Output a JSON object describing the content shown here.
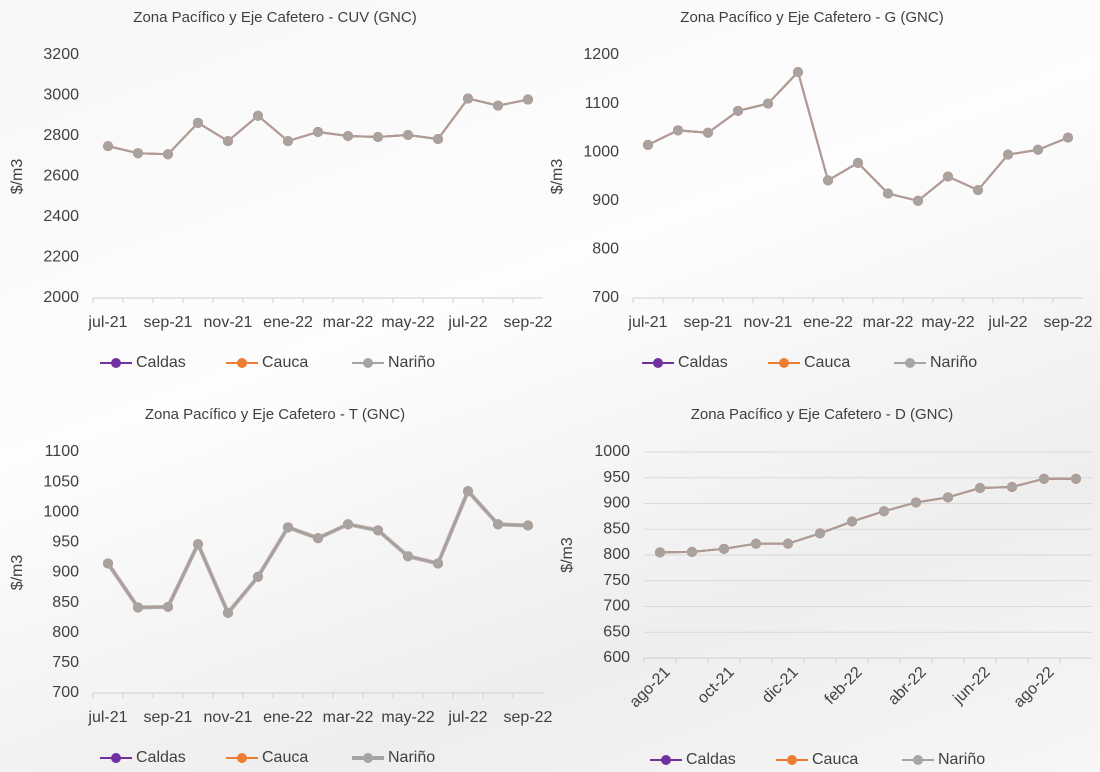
{
  "chart_data": [
    {
      "type": "line",
      "title": "Zona Pacífico y Eje Cafetero  - CUV (GNC)",
      "y_label": "$/m3",
      "categories": [
        "jul-21",
        null,
        "sep-21",
        null,
        "nov-21",
        null,
        "ene-22",
        null,
        "mar-22",
        null,
        "may-22",
        null,
        "jul-22",
        null,
        "sep-22"
      ],
      "series": [
        {
          "name": "Caldas",
          "color": "#7030a0",
          "values": [
            2750,
            2715,
            2710,
            2865,
            2775,
            2900,
            2775,
            2820,
            2800,
            2795,
            2805,
            2785,
            2985,
            2950,
            2980
          ]
        },
        {
          "name": "Cauca",
          "color": "#ed7d31",
          "values": [
            2750,
            2715,
            2710,
            2865,
            2775,
            2900,
            2775,
            2820,
            2800,
            2795,
            2805,
            2785,
            2985,
            2950,
            2980
          ]
        },
        {
          "name": "Nariño",
          "color": "#a5a5a5",
          "values": [
            2750,
            2715,
            2710,
            2865,
            2775,
            2900,
            2775,
            2820,
            2800,
            2795,
            2805,
            2785,
            2985,
            2950,
            2980
          ]
        }
      ],
      "ylim": [
        2000,
        3200
      ],
      "yticks": [
        2000,
        2200,
        2400,
        2600,
        2800,
        3000,
        3200
      ],
      "grid": false,
      "legend": "bottom"
    },
    {
      "type": "line",
      "title": "Zona Pacífico y Eje Cafetero  - G (GNC)",
      "y_label": "$/m3",
      "categories": [
        "jul-21",
        null,
        "sep-21",
        null,
        "nov-21",
        null,
        "ene-22",
        null,
        "mar-22",
        null,
        "may-22",
        null,
        "jul-22",
        null,
        "sep-22"
      ],
      "series": [
        {
          "name": "Caldas",
          "color": "#7030a0",
          "values": [
            1015,
            1045,
            1040,
            1085,
            1100,
            1165,
            942,
            978,
            915,
            900,
            950,
            922,
            995,
            1005,
            1030
          ]
        },
        {
          "name": "Cauca",
          "color": "#ed7d31",
          "values": [
            1015,
            1045,
            1040,
            1085,
            1100,
            1165,
            942,
            978,
            915,
            900,
            950,
            922,
            995,
            1005,
            1030
          ]
        },
        {
          "name": "Nariño",
          "color": "#a5a5a5",
          "values": [
            1015,
            1045,
            1040,
            1085,
            1100,
            1165,
            942,
            978,
            915,
            900,
            950,
            922,
            995,
            1005,
            1030
          ]
        }
      ],
      "ylim": [
        700,
        1200
      ],
      "yticks": [
        700,
        800,
        900,
        1000,
        1100,
        1200
      ],
      "grid": false,
      "legend": "bottom"
    },
    {
      "type": "line",
      "title": "Zona Pacífico y Eje Cafetero  - T (GNC)",
      "y_label": "$/m3",
      "categories": [
        "jul-21",
        null,
        "sep-21",
        null,
        "nov-21",
        null,
        "ene-22",
        null,
        "mar-22",
        null,
        "may-22",
        null,
        "jul-22",
        null,
        "sep-22"
      ],
      "series": [
        {
          "name": "Caldas",
          "color": "#7030a0",
          "values": [
            915,
            842,
            843,
            947,
            833,
            893,
            975,
            957,
            980,
            970,
            927,
            915,
            1035,
            980,
            978
          ]
        },
        {
          "name": "Cauca",
          "color": "#ed7d31",
          "values": [
            915,
            842,
            843,
            947,
            833,
            893,
            975,
            957,
            980,
            970,
            927,
            915,
            1035,
            980,
            978
          ]
        },
        {
          "name": "Nariño",
          "color": "#a5a5a5",
          "values": [
            915,
            842,
            843,
            947,
            833,
            893,
            975,
            957,
            980,
            970,
            927,
            915,
            1035,
            980,
            978
          ]
        }
      ],
      "ylim": [
        700,
        1100
      ],
      "yticks": [
        700,
        750,
        800,
        850,
        900,
        950,
        1000,
        1050,
        1100
      ],
      "grid": false,
      "legend": "bottom"
    },
    {
      "type": "line",
      "title": "Zona Pacífico y Eje Cafetero  - D (GNC)",
      "y_label": "$/m3",
      "categories": [
        "ago-21",
        null,
        "oct-21",
        null,
        "dic-21",
        null,
        "feb-22",
        null,
        "abr-22",
        null,
        "jun-22",
        null,
        "ago-22",
        null
      ],
      "series": [
        {
          "name": "Caldas",
          "color": "#7030a0",
          "values": [
            805,
            806,
            812,
            822,
            822,
            842,
            865,
            885,
            902,
            912,
            930,
            932,
            948,
            948
          ]
        },
        {
          "name": "Cauca",
          "color": "#ed7d31",
          "values": [
            805,
            806,
            812,
            822,
            822,
            842,
            865,
            885,
            902,
            912,
            930,
            932,
            948,
            948
          ]
        },
        {
          "name": "Nariño",
          "color": "#a5a5a5",
          "values": [
            805,
            806,
            812,
            822,
            822,
            842,
            865,
            885,
            902,
            912,
            930,
            932,
            948,
            948
          ]
        }
      ],
      "ylim": [
        600,
        1000
      ],
      "yticks": [
        600,
        650,
        700,
        750,
        800,
        850,
        900,
        950,
        1000
      ],
      "grid": true,
      "legend": "bottom"
    }
  ]
}
